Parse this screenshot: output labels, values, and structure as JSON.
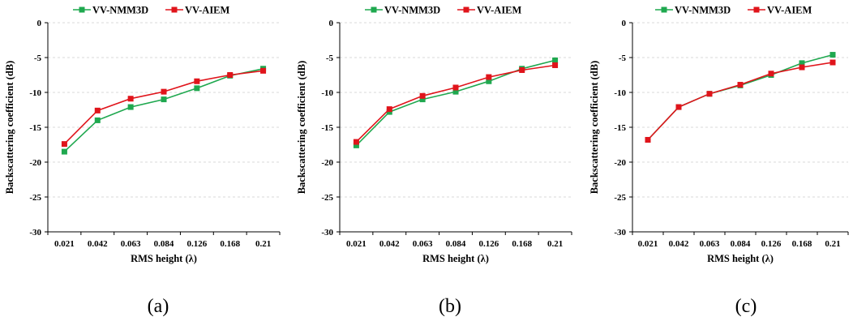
{
  "colors": {
    "series_nmm3d": "#1fa84f",
    "series_aiem": "#e0141b",
    "grid": "#d9d9d9",
    "axis": "#000000"
  },
  "chart_data": [
    {
      "type": "line",
      "caption": "(a)",
      "categories": [
        "0.021",
        "0.042",
        "0.063",
        "0.084",
        "0.126",
        "0.168",
        "0.21"
      ],
      "xlabel": "RMS height (λ)",
      "ylabel": "Backscattering coefficient (dB)",
      "ylim": [
        -30,
        0
      ],
      "yticks": [
        "0",
        "-5",
        "-10",
        "-15",
        "-20",
        "-25",
        "-30"
      ],
      "grid": "horizontal dashed",
      "legend_position": "top",
      "series": [
        {
          "name": "VV-NMM3D",
          "values": [
            -18.5,
            -14.0,
            -12.1,
            -11.0,
            -9.4,
            -7.6,
            -6.6
          ]
        },
        {
          "name": "VV-AIEM",
          "values": [
            -17.4,
            -12.6,
            -10.9,
            -9.9,
            -8.4,
            -7.5,
            -6.9
          ]
        }
      ]
    },
    {
      "type": "line",
      "caption": "(b)",
      "categories": [
        "0.021",
        "0.042",
        "0.063",
        "0.084",
        "0.126",
        "0.168",
        "0.21"
      ],
      "xlabel": "RMS height (λ)",
      "ylabel": "Backscattering coefficient (dB)",
      "ylim": [
        -30,
        0
      ],
      "yticks": [
        "0",
        "-5",
        "-10",
        "-15",
        "-20",
        "-25",
        "-30"
      ],
      "grid": "horizontal dashed",
      "legend_position": "top",
      "series": [
        {
          "name": "VV-NMM3D",
          "values": [
            -17.6,
            -12.8,
            -11.0,
            -9.9,
            -8.4,
            -6.6,
            -5.4
          ]
        },
        {
          "name": "VV-AIEM",
          "values": [
            -17.1,
            -12.4,
            -10.5,
            -9.3,
            -7.8,
            -6.8,
            -6.1
          ]
        }
      ]
    },
    {
      "type": "line",
      "caption": "(c)",
      "categories": [
        "0.021",
        "0.042",
        "0.063",
        "0.084",
        "0.126",
        "0.168",
        "0.21"
      ],
      "xlabel": "RMS height (λ)",
      "ylabel": "Backscattering coefficient (dB)",
      "ylim": [
        -30,
        0
      ],
      "yticks": [
        "0",
        "-5",
        "-10",
        "-15",
        "-20",
        "-25",
        "-30"
      ],
      "grid": "horizontal dashed",
      "legend_position": "top",
      "series": [
        {
          "name": "VV-NMM3D",
          "values": [
            -16.8,
            -12.1,
            -10.2,
            -9.0,
            -7.5,
            -5.8,
            -4.6
          ]
        },
        {
          "name": "VV-AIEM",
          "values": [
            -16.8,
            -12.1,
            -10.2,
            -8.9,
            -7.3,
            -6.4,
            -5.7
          ]
        }
      ]
    }
  ]
}
